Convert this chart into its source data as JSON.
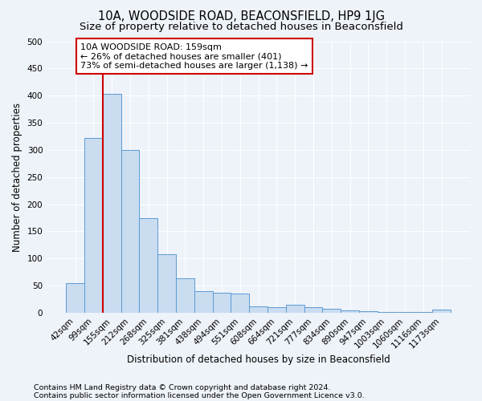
{
  "title": "10A, WOODSIDE ROAD, BEACONSFIELD, HP9 1JG",
  "subtitle": "Size of property relative to detached houses in Beaconsfield",
  "xlabel": "Distribution of detached houses by size in Beaconsfield",
  "ylabel": "Number of detached properties",
  "footnote1": "Contains HM Land Registry data © Crown copyright and database right 2024.",
  "footnote2": "Contains public sector information licensed under the Open Government Licence v3.0.",
  "categories": [
    "42sqm",
    "99sqm",
    "155sqm",
    "212sqm",
    "268sqm",
    "325sqm",
    "381sqm",
    "438sqm",
    "494sqm",
    "551sqm",
    "608sqm",
    "664sqm",
    "721sqm",
    "777sqm",
    "834sqm",
    "890sqm",
    "947sqm",
    "1003sqm",
    "1060sqm",
    "1116sqm",
    "1173sqm"
  ],
  "values": [
    54,
    322,
    403,
    300,
    175,
    108,
    63,
    40,
    37,
    35,
    12,
    11,
    15,
    10,
    8,
    5,
    3,
    2,
    1,
    1,
    6
  ],
  "bar_color": "#c9dcf0",
  "bar_edge_color": "#5b9bd5",
  "vline_x_index": 2,
  "vline_color": "#cc0000",
  "annotation_line1": "10A WOODSIDE ROAD: 159sqm",
  "annotation_line2": "← 26% of detached houses are smaller (401)",
  "annotation_line3": "73% of semi-detached houses are larger (1,138) →",
  "annotation_box_color": "#ffffff",
  "annotation_box_edge_color": "#cc0000",
  "ylim": [
    0,
    500
  ],
  "yticks": [
    0,
    50,
    100,
    150,
    200,
    250,
    300,
    350,
    400,
    450,
    500
  ],
  "bg_color": "#eef2f9",
  "grid_color": "#ffffff",
  "title_fontsize": 10.5,
  "subtitle_fontsize": 9.5,
  "axis_label_fontsize": 8.5,
  "tick_fontsize": 7.5,
  "annotation_fontsize": 8,
  "footnote_fontsize": 6.8
}
